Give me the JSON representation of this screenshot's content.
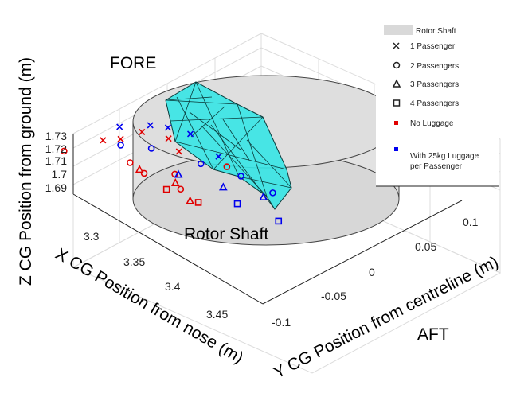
{
  "chart_data": {
    "type": "scatter",
    "title": "",
    "xlabel": "X CG Position from nose (m)",
    "ylabel": "Y CG Position from centreline (m)",
    "zlabel": "Z CG Position from ground (m)",
    "x_ticks": [
      "3.3",
      "3.35",
      "3.4",
      "3.45"
    ],
    "y_ticks": [
      "-0.1",
      "-0.05",
      "0",
      "0.05",
      "0.1"
    ],
    "z_ticks": [
      "1.69",
      "1.7",
      "1.71",
      "1.72",
      "1.73"
    ],
    "xlim": [
      3.27,
      3.47
    ],
    "ylim": [
      -0.12,
      0.12
    ],
    "zlim": [
      1.685,
      1.735
    ],
    "annotations": [
      "FORE",
      "AFT",
      "Rotor Shaft"
    ],
    "grid": true,
    "legend_position": "top-right",
    "legend": [
      {
        "label": "Rotor Shaft",
        "symbol": "patch",
        "color": "#d9d9d9"
      },
      {
        "label": "1 Passenger",
        "symbol": "x",
        "color": "#222222"
      },
      {
        "label": "2 Passengers",
        "symbol": "o",
        "color": "#222222"
      },
      {
        "label": "3 Passengers",
        "symbol": "triangle",
        "color": "#222222"
      },
      {
        "label": "4 Passengers",
        "symbol": "square",
        "color": "#222222"
      },
      {
        "label": "No Luggage",
        "symbol": "filled-square",
        "color": "#e00000"
      },
      {
        "label": "With 25kg Luggage per Passenger",
        "symbol": "filled-square",
        "color": "#0000ee"
      }
    ],
    "hull_color": "#36e6e6",
    "series": [
      {
        "name": "1 Passenger",
        "luggage": "No Luggage",
        "marker": "x",
        "color": "#e00000",
        "points": [
          [
            3.32,
            -0.04,
            1.725
          ],
          [
            3.33,
            -0.03,
            1.727
          ],
          [
            3.335,
            -0.01,
            1.728
          ],
          [
            3.35,
            0.005,
            1.724
          ],
          [
            3.37,
            -0.005,
            1.726
          ]
        ]
      },
      {
        "name": "1 Passenger",
        "luggage": "With 25kg Luggage per Passenger",
        "marker": "x",
        "color": "#0000ee",
        "points": [
          [
            3.32,
            -0.02,
            1.729
          ],
          [
            3.335,
            0.0,
            1.73
          ],
          [
            3.345,
            0.01,
            1.729
          ],
          [
            3.36,
            0.02,
            1.727
          ],
          [
            3.39,
            0.02,
            1.722
          ]
        ]
      },
      {
        "name": "2 Passengers",
        "luggage": "No Luggage",
        "marker": "o",
        "color": "#e00000",
        "points": [
          [
            3.305,
            -0.07,
            1.72
          ],
          [
            3.34,
            -0.03,
            1.712
          ],
          [
            3.355,
            -0.03,
            1.71
          ],
          [
            3.37,
            -0.01,
            1.709
          ],
          [
            3.39,
            0.03,
            1.71
          ],
          [
            3.385,
            -0.02,
            1.707
          ]
        ]
      },
      {
        "name": "2 Passengers",
        "luggage": "With 25kg Luggage per Passenger",
        "marker": "o",
        "color": "#0000ee",
        "points": [
          [
            3.33,
            -0.03,
            1.722
          ],
          [
            3.345,
            -0.01,
            1.719
          ],
          [
            3.38,
            0.01,
            1.715
          ],
          [
            3.405,
            0.03,
            1.709
          ],
          [
            3.43,
            0.04,
            1.703
          ]
        ]
      },
      {
        "name": "3 Passengers",
        "luggage": "No Luggage",
        "marker": "triangle",
        "color": "#e00000",
        "points": [
          [
            3.35,
            -0.03,
            1.711
          ],
          [
            3.375,
            -0.015,
            1.706
          ],
          [
            3.395,
            -0.02,
            1.702
          ]
        ]
      },
      {
        "name": "3 Passengers",
        "luggage": "With 25kg Luggage per Passenger",
        "marker": "triangle",
        "color": "#0000ee",
        "points": [
          [
            3.365,
            0.0,
            1.703
          ],
          [
            3.395,
            0.02,
            1.699
          ],
          [
            3.42,
            0.04,
            1.695
          ]
        ]
      },
      {
        "name": "4 Passengers",
        "luggage": "No Luggage",
        "marker": "square",
        "color": "#e00000",
        "points": [
          [
            3.37,
            -0.02,
            1.7
          ],
          [
            3.395,
            -0.01,
            1.697
          ]
        ]
      },
      {
        "name": "4 Passengers",
        "luggage": "With 25kg Luggage per Passenger",
        "marker": "square",
        "color": "#0000ee",
        "points": [
          [
            3.41,
            0.02,
            1.692
          ],
          [
            3.445,
            0.03,
            1.69
          ]
        ]
      }
    ]
  }
}
